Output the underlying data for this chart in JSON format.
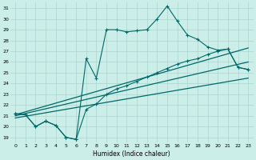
{
  "xlabel": "Humidex (Indice chaleur)",
  "background_color": "#cceee8",
  "grid_color": "#aad4ce",
  "line_color": "#006868",
  "xlim": [
    -0.5,
    23.5
  ],
  "ylim": [
    18.5,
    31.5
  ],
  "yticks": [
    19,
    20,
    21,
    22,
    23,
    24,
    25,
    26,
    27,
    28,
    29,
    30,
    31
  ],
  "xticks": [
    0,
    1,
    2,
    3,
    4,
    5,
    6,
    7,
    8,
    9,
    10,
    11,
    12,
    13,
    14,
    15,
    16,
    17,
    18,
    19,
    20,
    21,
    22,
    23
  ],
  "series_zigzag": {
    "x": [
      0,
      1,
      2,
      3,
      4,
      5,
      6,
      7,
      8,
      9,
      10,
      11,
      12,
      13,
      14,
      15,
      16,
      17,
      18,
      19,
      20,
      21,
      22,
      23
    ],
    "y": [
      21.2,
      21.1,
      20.0,
      20.5,
      20.1,
      19.0,
      18.8,
      26.3,
      24.5,
      29.0,
      29.0,
      28.8,
      28.9,
      29.0,
      30.0,
      31.2,
      29.8,
      28.5,
      28.1,
      27.4,
      27.1,
      27.2,
      25.5,
      25.3
    ]
  },
  "series_line2": {
    "x": [
      0,
      1,
      2,
      3,
      4,
      5,
      6,
      7,
      8,
      9,
      10,
      11,
      12,
      13,
      14,
      15,
      16,
      17,
      18,
      19,
      20,
      21,
      22,
      23
    ],
    "y": [
      21.2,
      21.1,
      20.0,
      20.5,
      20.1,
      19.0,
      18.8,
      21.6,
      22.1,
      23.0,
      23.5,
      23.8,
      24.2,
      24.6,
      25.0,
      25.4,
      25.8,
      26.1,
      26.3,
      26.7,
      27.0,
      27.2,
      25.5,
      25.3
    ]
  },
  "series_reg1": {
    "x": [
      0,
      23
    ],
    "y": [
      21.1,
      27.3
    ]
  },
  "series_reg2": {
    "x": [
      0,
      23
    ],
    "y": [
      21.0,
      26.0
    ]
  },
  "series_reg3": {
    "x": [
      0,
      23
    ],
    "y": [
      20.8,
      24.5
    ]
  }
}
